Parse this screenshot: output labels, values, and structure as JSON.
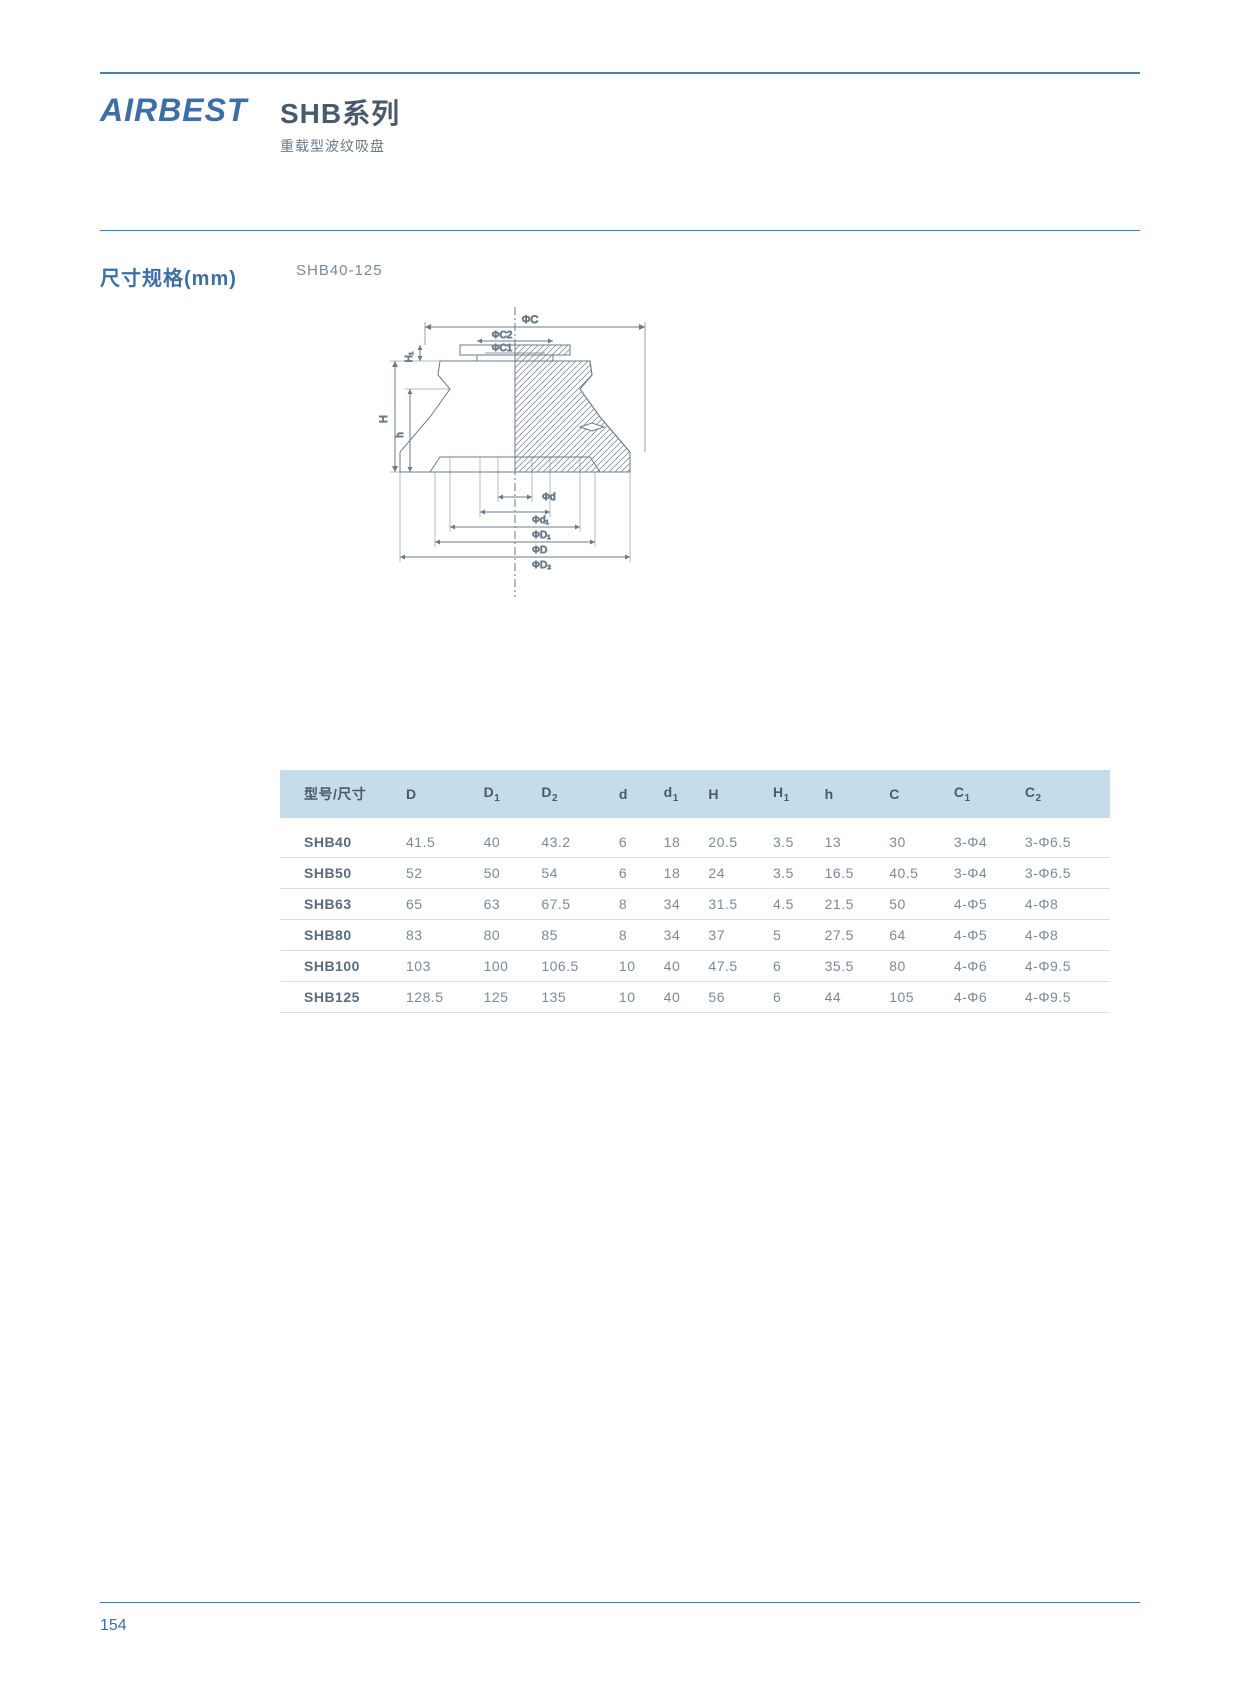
{
  "brand": "AIRBEST",
  "series_title": "SHB系列",
  "series_subtitle": "重载型波纹吸盘",
  "section_label": "尺寸规格(mm)",
  "diagram_caption": "SHB40-125",
  "diagram_labels": {
    "phiC": "ΦC",
    "phiC2": "ΦC2",
    "phiC1": "ΦC1",
    "H1": "H₁",
    "H": "H",
    "h": "h",
    "phid": "Φd",
    "phid1": "Φd₁",
    "phiD1": "ΦD₁",
    "phiD": "ΦD",
    "phiD2": "ΦD₂"
  },
  "table": {
    "header_bg": "#c5dceb",
    "border_color": "#d8e0e6",
    "columns": [
      "型号/尺寸",
      "D",
      "D₁",
      "D₂",
      "d",
      "d₁",
      "H",
      "H₁",
      "h",
      "C",
      "C₁",
      "C₂"
    ],
    "columns_plain": [
      "型号/尺寸",
      "D",
      "D1",
      "D2",
      "d",
      "d1",
      "H",
      "H1",
      "h",
      "C",
      "C1",
      "C2"
    ],
    "rows": [
      [
        "SHB40",
        "41.5",
        "40",
        "43.2",
        "6",
        "18",
        "20.5",
        "3.5",
        "13",
        "30",
        "3-Φ4",
        "3-Φ6.5"
      ],
      [
        "SHB50",
        "52",
        "50",
        "54",
        "6",
        "18",
        "24",
        "3.5",
        "16.5",
        "40.5",
        "3-Φ4",
        "3-Φ6.5"
      ],
      [
        "SHB63",
        "65",
        "63",
        "67.5",
        "8",
        "34",
        "31.5",
        "4.5",
        "21.5",
        "50",
        "4-Φ5",
        "4-Φ8"
      ],
      [
        "SHB80",
        "83",
        "80",
        "85",
        "8",
        "34",
        "37",
        "5",
        "27.5",
        "64",
        "4-Φ5",
        "4-Φ8"
      ],
      [
        "SHB100",
        "103",
        "100",
        "106.5",
        "10",
        "40",
        "47.5",
        "6",
        "35.5",
        "80",
        "4-Φ6",
        "4-Φ9.5"
      ],
      [
        "SHB125",
        "128.5",
        "125",
        "135",
        "10",
        "40",
        "56",
        "6",
        "44",
        "105",
        "4-Φ6",
        "4-Φ9.5"
      ]
    ]
  },
  "page_number": "154",
  "colors": {
    "brand_blue": "#3d6fa5",
    "rule_blue": "#4a7fb5",
    "text_gray": "#5a6b7b",
    "light_gray": "#7a8a9a"
  }
}
